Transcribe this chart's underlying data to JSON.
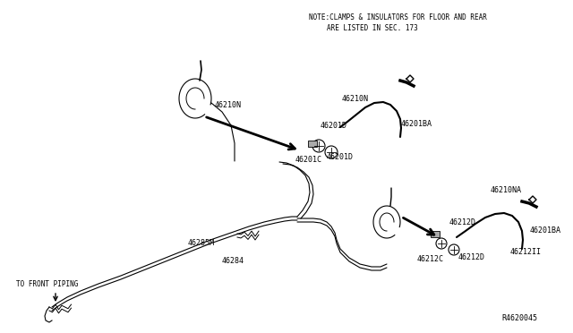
{
  "bg_color": "#ffffff",
  "line_color": "#000000",
  "note_line1": "NOTE:CLAMPS & INSULATORS FOR FLOOR AND REAR",
  "note_line2": "ARE LISTED IN SEC. 173",
  "ref_code": "R4620045",
  "figsize": [
    6.4,
    3.72
  ],
  "dpi": 100
}
